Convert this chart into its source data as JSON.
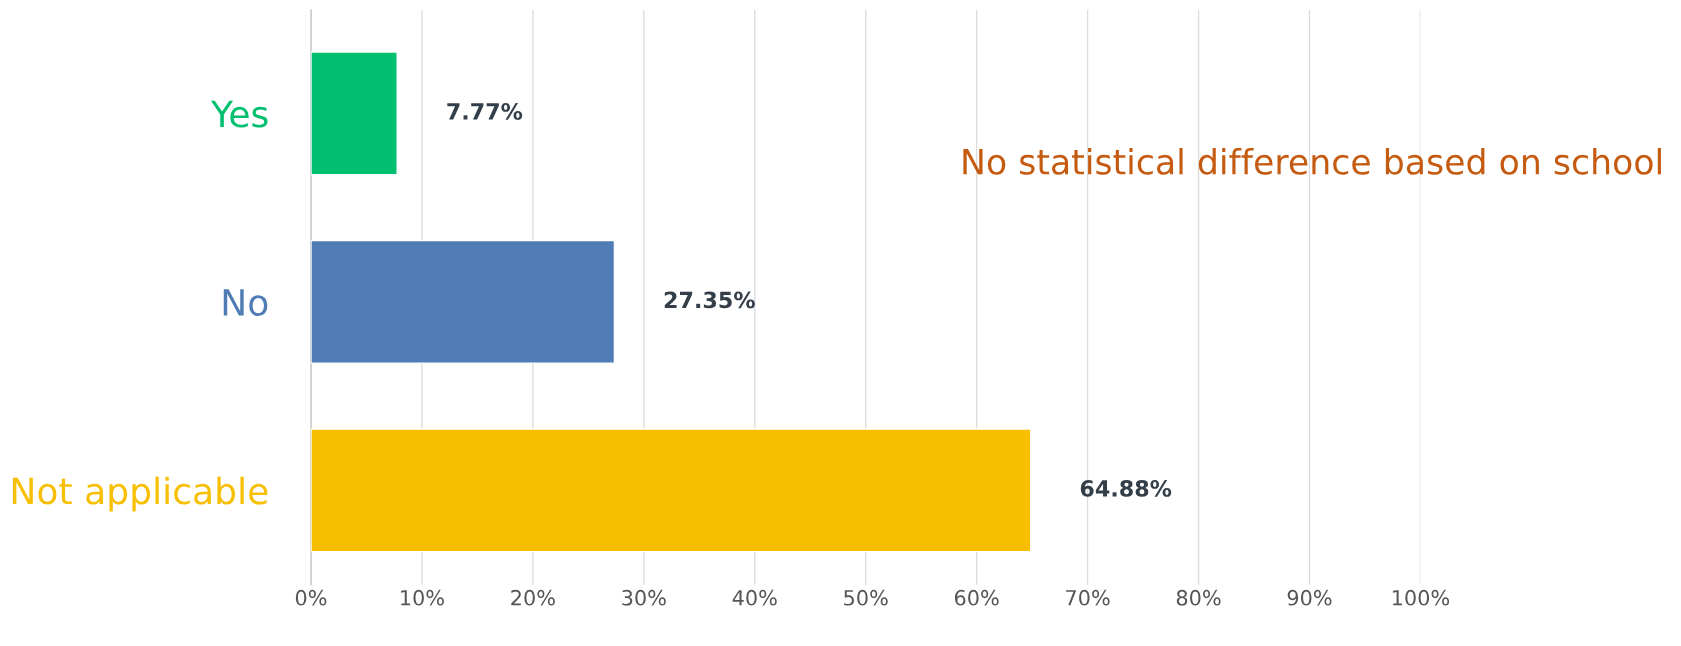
{
  "chart_data": {
    "type": "bar",
    "orientation": "horizontal",
    "categories": [
      "Yes",
      "No",
      "Not applicable"
    ],
    "values": [
      7.77,
      27.35,
      64.88
    ],
    "colors": [
      "#00bf6f",
      "#507cb6",
      "#f7bf00"
    ],
    "value_labels": [
      "7.77%",
      "27.35%",
      "64.88%"
    ],
    "xlim": [
      0,
      100
    ],
    "xticks": [
      {
        "value": 0,
        "label": "0%"
      },
      {
        "value": 10,
        "label": "10%"
      },
      {
        "value": 20,
        "label": "20%"
      },
      {
        "value": 30,
        "label": "30%"
      },
      {
        "value": 40,
        "label": "40%"
      },
      {
        "value": 50,
        "label": "50%"
      },
      {
        "value": 60,
        "label": "60%"
      },
      {
        "value": 70,
        "label": "70%"
      },
      {
        "value": 80,
        "label": "80%"
      },
      {
        "value": 90,
        "label": "90%"
      },
      {
        "value": 100,
        "label": "100%"
      }
    ],
    "grid": "x",
    "annotations": [
      "No statistical difference based on school"
    ]
  }
}
